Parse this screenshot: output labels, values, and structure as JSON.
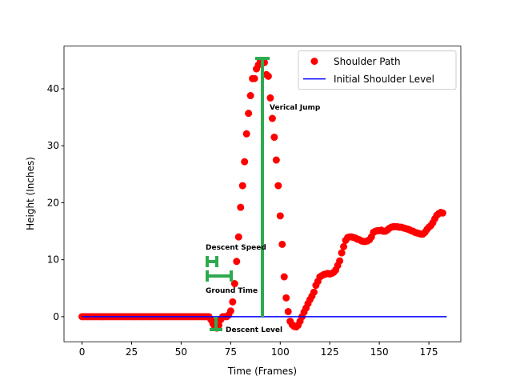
{
  "chart_data": {
    "type": "scatter",
    "xlabel": "Time (Frames)",
    "ylabel": "Height (Inches)",
    "xlim": [
      -9.1,
      191.1
    ],
    "ylim": [
      -4.4,
      47.5
    ],
    "xticks": [
      0,
      25,
      50,
      75,
      100,
      125,
      150,
      175
    ],
    "yticks": [
      0,
      10,
      20,
      30,
      40
    ],
    "legend": "upper right",
    "series": [
      {
        "name": "Shoulder Path",
        "type": "scatter",
        "color": "#ff0000",
        "x": [
          0,
          1,
          2,
          3,
          4,
          5,
          6,
          7,
          8,
          9,
          10,
          11,
          12,
          13,
          14,
          15,
          16,
          17,
          18,
          19,
          20,
          21,
          22,
          23,
          24,
          25,
          26,
          27,
          28,
          29,
          30,
          31,
          32,
          33,
          34,
          35,
          36,
          37,
          38,
          39,
          40,
          41,
          42,
          43,
          44,
          45,
          46,
          47,
          48,
          49,
          50,
          51,
          52,
          53,
          54,
          55,
          56,
          57,
          58,
          59,
          60,
          61,
          62,
          63,
          64,
          65,
          66,
          67,
          68,
          69,
          70,
          71,
          72,
          73,
          74,
          75,
          76,
          77,
          78,
          79,
          80,
          81,
          82,
          83,
          84,
          85,
          86,
          87,
          88,
          89,
          90,
          91,
          92,
          93,
          94,
          95,
          96,
          97,
          98,
          99,
          100,
          101,
          102,
          103,
          104,
          105,
          106,
          107,
          108,
          109,
          110,
          111,
          112,
          113,
          114,
          115,
          116,
          117,
          118,
          119,
          120,
          121,
          122,
          123,
          124,
          125,
          126,
          127,
          128,
          129,
          130,
          131,
          132,
          133,
          134,
          135,
          136,
          137,
          138,
          139,
          140,
          141,
          142,
          143,
          144,
          145,
          146,
          147,
          148,
          149,
          150,
          151,
          152,
          153,
          154,
          155,
          156,
          157,
          158,
          159,
          160,
          161,
          162,
          163,
          164,
          165,
          166,
          167,
          168,
          169,
          170,
          171,
          172,
          173,
          174,
          175,
          176,
          177,
          178,
          179,
          180,
          181,
          182
        ],
        "values": [
          0,
          0,
          0,
          0,
          0,
          0,
          0,
          0,
          0,
          0,
          0,
          0,
          0,
          0,
          0,
          0,
          0,
          0,
          0,
          0,
          0,
          0,
          0,
          0,
          0,
          0,
          0,
          0,
          0,
          0,
          0,
          0,
          0,
          0,
          0,
          0,
          0,
          0,
          0,
          0,
          0,
          0,
          0,
          0,
          0,
          0,
          0,
          0,
          0,
          0,
          0,
          0,
          0,
          0,
          0,
          0,
          0,
          0,
          0,
          0,
          0,
          0,
          0,
          0,
          0,
          -0.5,
          -1.2,
          -1.8,
          -2,
          -1.5,
          -0.5,
          0,
          0,
          0,
          0.3,
          1,
          2.6,
          5.8,
          9.7,
          14,
          19.2,
          23,
          27.2,
          32.1,
          35.7,
          38.8,
          41.8,
          41.8,
          43.5,
          44.2,
          45,
          44.8,
          44.6,
          42.5,
          42.2,
          38.4,
          34.8,
          31.5,
          27.5,
          23,
          17.7,
          12.7,
          7,
          3.3,
          0.9,
          -0.8,
          -1.4,
          -1.7,
          -1.8,
          -1.5,
          -0.8,
          0,
          0.8,
          1.5,
          2.3,
          3,
          3.6,
          4.3,
          5.5,
          6.2,
          7,
          7.2,
          7.4,
          7.5,
          7.6,
          7.5,
          7.6,
          7.8,
          8.2,
          9,
          9.8,
          11.2,
          12.3,
          13.4,
          13.9,
          14,
          14,
          13.9,
          13.8,
          13.6,
          13.5,
          13.3,
          13.2,
          13.2,
          13.3,
          13.5,
          14,
          14.8,
          15,
          15.1,
          15.1,
          15.2,
          15,
          15,
          15.2,
          15.5,
          15.7,
          15.8,
          15.8,
          15.8,
          15.7,
          15.7,
          15.6,
          15.5,
          15.4,
          15.3,
          15.1,
          15,
          14.8,
          14.7,
          14.6,
          14.5,
          14.5,
          14.8,
          15.3,
          15.7,
          16,
          16.5,
          17.2,
          17.8,
          18.1,
          18.3,
          18.2
        ]
      },
      {
        "name": "Initial Shoulder Level",
        "type": "line",
        "color": "#0000ff",
        "x": [
          0,
          184
        ],
        "values": [
          0,
          0
        ]
      }
    ],
    "annotations": [
      "Verical Jump",
      "Descent Speed",
      "Ground Time",
      "Descent Level"
    ]
  }
}
